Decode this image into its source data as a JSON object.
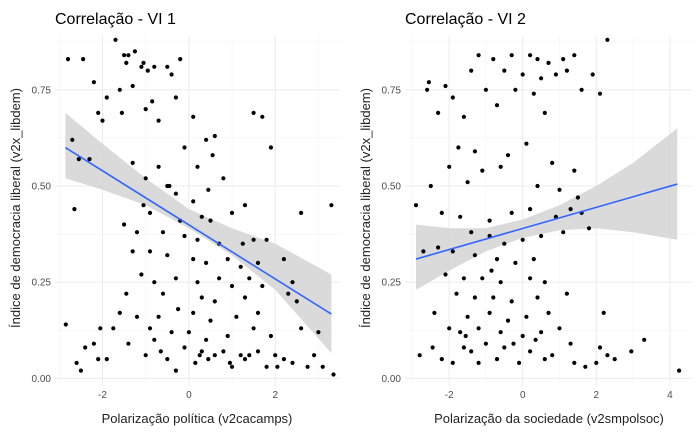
{
  "chart_data": [
    {
      "type": "scatter",
      "title": "Correlação - VI 1",
      "xlabel": "Polarização política (v2cacamps)",
      "ylabel": "Índice de democracia liberal (v2x_libdem)",
      "xlim": [
        -3.1,
        3.5
      ],
      "ylim": [
        -0.02,
        0.89
      ],
      "xticks": [
        -2,
        0,
        2
      ],
      "yticks": [
        0.0,
        0.25,
        0.5,
        0.75
      ],
      "xtick_labels": [
        "-2",
        "0",
        "2"
      ],
      "ytick_labels": [
        "0.00",
        "0.25",
        "0.50",
        "0.75"
      ],
      "grid": true,
      "point_color": "#000000",
      "line_color": "#3366ff",
      "band_color": "#d3d3d3",
      "trend": {
        "x": [
          -2.86,
          -2.0,
          -1.0,
          0.0,
          1.0,
          2.0,
          3.3
        ],
        "fit": [
          0.6,
          0.546,
          0.482,
          0.418,
          0.355,
          0.291,
          0.167
        ],
        "lower": [
          0.52,
          0.49,
          0.45,
          0.39,
          0.32,
          0.23,
          0.065
        ],
        "upper": [
          0.69,
          0.61,
          0.52,
          0.44,
          0.39,
          0.35,
          0.27
        ]
      },
      "points": [
        [
          -2.8,
          0.83
        ],
        [
          -2.45,
          0.83
        ],
        [
          -1.7,
          0.88
        ],
        [
          -1.5,
          0.84
        ],
        [
          -1.4,
          0.84
        ],
        [
          -1.25,
          0.85
        ],
        [
          -1.05,
          0.82
        ],
        [
          -0.8,
          0.81
        ],
        [
          -0.5,
          0.81
        ],
        [
          -0.4,
          0.79
        ],
        [
          -0.2,
          0.83
        ],
        [
          -2.2,
          0.77
        ],
        [
          -1.9,
          0.73
        ],
        [
          -1.6,
          0.75
        ],
        [
          -1.3,
          0.76
        ],
        [
          -1.1,
          0.81
        ],
        [
          -0.95,
          0.8
        ],
        [
          -1.45,
          0.82
        ],
        [
          -0.85,
          0.72
        ],
        [
          -0.7,
          0.67
        ],
        [
          -1.0,
          0.7
        ],
        [
          -0.3,
          0.73
        ],
        [
          0.1,
          0.68
        ],
        [
          0.4,
          0.62
        ],
        [
          0.6,
          0.63
        ],
        [
          -2.1,
          0.69
        ],
        [
          -2.0,
          0.67
        ],
        [
          -1.55,
          0.69
        ],
        [
          -2.7,
          0.62
        ],
        [
          -0.1,
          0.6
        ],
        [
          0.2,
          0.55
        ],
        [
          0.55,
          0.58
        ],
        [
          1.5,
          0.69
        ],
        [
          1.7,
          0.68
        ],
        [
          1.9,
          0.6
        ],
        [
          -2.55,
          0.57
        ],
        [
          -2.3,
          0.57
        ],
        [
          -1.3,
          0.56
        ],
        [
          -1.0,
          0.52
        ],
        [
          -0.7,
          0.55
        ],
        [
          -0.5,
          0.5
        ],
        [
          -0.45,
          0.5
        ],
        [
          -0.3,
          0.48
        ],
        [
          0.1,
          0.46
        ],
        [
          0.45,
          0.49
        ],
        [
          0.8,
          0.52
        ],
        [
          1.3,
          0.45
        ],
        [
          -2.65,
          0.44
        ],
        [
          -1.05,
          0.45
        ],
        [
          -0.9,
          0.43
        ],
        [
          -0.2,
          0.41
        ],
        [
          0.3,
          0.42
        ],
        [
          0.5,
          0.41
        ],
        [
          1.0,
          0.43
        ],
        [
          2.6,
          0.43
        ],
        [
          3.3,
          0.45
        ],
        [
          -1.5,
          0.4
        ],
        [
          -1.2,
          0.38
        ],
        [
          -0.6,
          0.38
        ],
        [
          -0.1,
          0.37
        ],
        [
          0.2,
          0.36
        ],
        [
          0.7,
          0.35
        ],
        [
          1.25,
          0.35
        ],
        [
          1.5,
          0.36
        ],
        [
          1.8,
          0.36
        ],
        [
          -1.3,
          0.33
        ],
        [
          -0.9,
          0.33
        ],
        [
          -0.5,
          0.32
        ],
        [
          0.1,
          0.31
        ],
        [
          0.4,
          0.3
        ],
        [
          0.9,
          0.31
        ],
        [
          1.2,
          0.29
        ],
        [
          1.6,
          0.3
        ],
        [
          2.2,
          0.31
        ],
        [
          -1.1,
          0.27
        ],
        [
          -0.8,
          0.25
        ],
        [
          -0.3,
          0.26
        ],
        [
          0.2,
          0.25
        ],
        [
          0.7,
          0.26
        ],
        [
          1.0,
          0.24
        ],
        [
          1.4,
          0.26
        ],
        [
          1.7,
          0.24
        ],
        [
          2.4,
          0.25
        ],
        [
          -1.45,
          0.22
        ],
        [
          -0.6,
          0.22
        ],
        [
          0.3,
          0.21
        ],
        [
          0.6,
          0.2
        ],
        [
          1.3,
          0.21
        ],
        [
          2.3,
          0.22
        ],
        [
          -2.05,
          0.13
        ],
        [
          -1.6,
          0.17
        ],
        [
          -1.2,
          0.16
        ],
        [
          -0.7,
          0.16
        ],
        [
          -0.25,
          0.18
        ],
        [
          0.1,
          0.17
        ],
        [
          0.5,
          0.15
        ],
        [
          1.1,
          0.16
        ],
        [
          1.6,
          0.17
        ],
        [
          2.5,
          0.2
        ],
        [
          -2.85,
          0.14
        ],
        [
          -1.75,
          0.13
        ],
        [
          -0.9,
          0.13
        ],
        [
          -0.4,
          0.12
        ],
        [
          0.0,
          0.12
        ],
        [
          0.4,
          0.1
        ],
        [
          0.9,
          0.11
        ],
        [
          1.5,
          0.13
        ],
        [
          1.9,
          0.11
        ],
        [
          2.6,
          0.13
        ],
        [
          3.0,
          0.12
        ],
        [
          -2.4,
          0.08
        ],
        [
          -2.2,
          0.09
        ],
        [
          -1.4,
          0.09
        ],
        [
          -0.8,
          0.1
        ],
        [
          -0.1,
          0.08
        ],
        [
          0.3,
          0.07
        ],
        [
          0.6,
          0.06
        ],
        [
          0.8,
          0.07
        ],
        [
          1.2,
          0.06
        ],
        [
          1.6,
          0.07
        ],
        [
          2.0,
          0.06
        ],
        [
          2.4,
          0.04
        ],
        [
          2.9,
          0.06
        ],
        [
          3.1,
          0.03
        ],
        [
          -2.6,
          0.04
        ],
        [
          -2.1,
          0.05
        ],
        [
          -1.0,
          0.06
        ],
        [
          -0.5,
          0.05
        ],
        [
          0.15,
          0.04
        ],
        [
          0.45,
          0.05
        ],
        [
          1.0,
          0.03
        ],
        [
          1.3,
          0.05
        ],
        [
          1.8,
          0.03
        ],
        [
          2.2,
          0.05
        ],
        [
          2.75,
          0.03
        ],
        [
          3.35,
          0.01
        ],
        [
          -2.5,
          0.02
        ],
        [
          -0.3,
          0.02
        ],
        [
          0.95,
          0.04
        ],
        [
          1.4,
          0.06
        ],
        [
          -1.9,
          0.05
        ],
        [
          0.25,
          0.06
        ],
        [
          2.05,
          0.03
        ],
        [
          -0.65,
          0.07
        ]
      ]
    },
    {
      "type": "scatter",
      "title": "Correlação - VI 2",
      "xlabel": "Polarização da sociedade (v2smpolsoc)",
      "ylabel": "Índice de democracia liberal (v2x_libdem)",
      "xlim": [
        -3.2,
        4.6
      ],
      "ylim": [
        -0.02,
        0.89
      ],
      "xticks": [
        -2,
        0,
        2,
        4
      ],
      "yticks": [
        0.0,
        0.25,
        0.5,
        0.75
      ],
      "xtick_labels": [
        "-2",
        "0",
        "2",
        "4"
      ],
      "ytick_labels": [
        "0.00",
        "0.25",
        "0.50",
        "0.75"
      ],
      "grid": true,
      "point_color": "#000000",
      "line_color": "#3366ff",
      "band_color": "#d3d3d3",
      "trend": {
        "x": [
          -2.9,
          -2.0,
          -1.0,
          0.0,
          1.0,
          2.0,
          3.0,
          4.2
        ],
        "fit": [
          0.31,
          0.334,
          0.361,
          0.389,
          0.417,
          0.445,
          0.473,
          0.505
        ],
        "lower": [
          0.23,
          0.28,
          0.33,
          0.365,
          0.385,
          0.39,
          0.38,
          0.36
        ],
        "upper": [
          0.4,
          0.39,
          0.39,
          0.413,
          0.45,
          0.5,
          0.56,
          0.65
        ]
      },
      "points": [
        [
          2.3,
          0.88
        ],
        [
          -1.2,
          0.84
        ],
        [
          -0.3,
          0.84
        ],
        [
          0.2,
          0.84
        ],
        [
          0.4,
          0.83
        ],
        [
          0.7,
          0.82
        ],
        [
          1.1,
          0.83
        ],
        [
          1.4,
          0.84
        ],
        [
          -0.8,
          0.83
        ],
        [
          -1.4,
          0.8
        ],
        [
          -0.5,
          0.8
        ],
        [
          0.0,
          0.79
        ],
        [
          0.5,
          0.78
        ],
        [
          0.9,
          0.79
        ],
        [
          1.2,
          0.8
        ],
        [
          1.9,
          0.79
        ],
        [
          -2.6,
          0.75
        ],
        [
          -2.1,
          0.76
        ],
        [
          -1.9,
          0.73
        ],
        [
          -1.0,
          0.75
        ],
        [
          -0.2,
          0.75
        ],
        [
          0.3,
          0.74
        ],
        [
          1.6,
          0.75
        ],
        [
          2.1,
          0.74
        ],
        [
          -2.55,
          0.77
        ],
        [
          -2.3,
          0.69
        ],
        [
          -1.6,
          0.68
        ],
        [
          -0.7,
          0.71
        ],
        [
          0.6,
          0.69
        ],
        [
          -1.75,
          0.6
        ],
        [
          -1.3,
          0.59
        ],
        [
          -0.4,
          0.58
        ],
        [
          0.1,
          0.61
        ],
        [
          -2.0,
          0.55
        ],
        [
          -1.1,
          0.54
        ],
        [
          -0.6,
          0.55
        ],
        [
          0.8,
          0.56
        ],
        [
          1.4,
          0.54
        ],
        [
          -2.5,
          0.5
        ],
        [
          -1.5,
          0.51
        ],
        [
          0.4,
          0.5
        ],
        [
          1.0,
          0.49
        ],
        [
          1.5,
          0.47
        ],
        [
          -2.9,
          0.45
        ],
        [
          -2.2,
          0.43
        ],
        [
          -1.7,
          0.42
        ],
        [
          -0.9,
          0.41
        ],
        [
          -0.3,
          0.43
        ],
        [
          0.2,
          0.44
        ],
        [
          0.9,
          0.42
        ],
        [
          1.3,
          0.44
        ],
        [
          1.6,
          0.43
        ],
        [
          -1.4,
          0.38
        ],
        [
          -0.9,
          0.37
        ],
        [
          -0.5,
          0.35
        ],
        [
          0.0,
          0.36
        ],
        [
          0.5,
          0.37
        ],
        [
          1.1,
          0.38
        ],
        [
          1.8,
          0.39
        ],
        [
          -2.7,
          0.33
        ],
        [
          -2.3,
          0.34
        ],
        [
          -1.9,
          0.33
        ],
        [
          -1.3,
          0.32
        ],
        [
          -0.7,
          0.31
        ],
        [
          -0.2,
          0.3
        ],
        [
          0.3,
          0.31
        ],
        [
          -2.1,
          0.27
        ],
        [
          -1.6,
          0.26
        ],
        [
          -1.1,
          0.26
        ],
        [
          -0.6,
          0.25
        ],
        [
          0.2,
          0.26
        ],
        [
          0.6,
          0.25
        ],
        [
          -1.8,
          0.22
        ],
        [
          -1.3,
          0.21
        ],
        [
          -0.8,
          0.21
        ],
        [
          -0.3,
          0.2
        ],
        [
          0.4,
          0.21
        ],
        [
          1.2,
          0.22
        ],
        [
          -2.4,
          0.17
        ],
        [
          -1.5,
          0.16
        ],
        [
          -0.9,
          0.17
        ],
        [
          -0.4,
          0.15
        ],
        [
          0.1,
          0.16
        ],
        [
          0.7,
          0.17
        ],
        [
          -2.0,
          0.13
        ],
        [
          -1.7,
          0.12
        ],
        [
          -1.2,
          0.13
        ],
        [
          -0.6,
          0.12
        ],
        [
          0.0,
          0.11
        ],
        [
          0.5,
          0.12
        ],
        [
          1.0,
          0.13
        ],
        [
          -2.8,
          0.06
        ],
        [
          -2.2,
          0.05
        ],
        [
          -1.6,
          0.08
        ],
        [
          -1.4,
          0.07
        ],
        [
          -1.0,
          0.09
        ],
        [
          -0.5,
          0.08
        ],
        [
          0.2,
          0.07
        ],
        [
          0.8,
          0.06
        ],
        [
          1.3,
          0.09
        ],
        [
          2.1,
          0.08
        ],
        [
          2.3,
          0.06
        ],
        [
          -1.9,
          0.04
        ],
        [
          -1.2,
          0.04
        ],
        [
          -0.7,
          0.05
        ],
        [
          -0.1,
          0.04
        ],
        [
          0.6,
          0.05
        ],
        [
          1.4,
          0.04
        ],
        [
          2.5,
          0.05
        ],
        [
          3.3,
          0.1
        ],
        [
          2.95,
          0.07
        ],
        [
          2.0,
          0.04
        ],
        [
          1.7,
          0.03
        ],
        [
          -2.45,
          0.08
        ],
        [
          -1.55,
          0.11
        ],
        [
          -0.25,
          0.09
        ],
        [
          0.35,
          0.1
        ],
        [
          4.25,
          0.02
        ],
        [
          2.2,
          0.17
        ],
        [
          -0.85,
          0.28
        ]
      ]
    }
  ]
}
